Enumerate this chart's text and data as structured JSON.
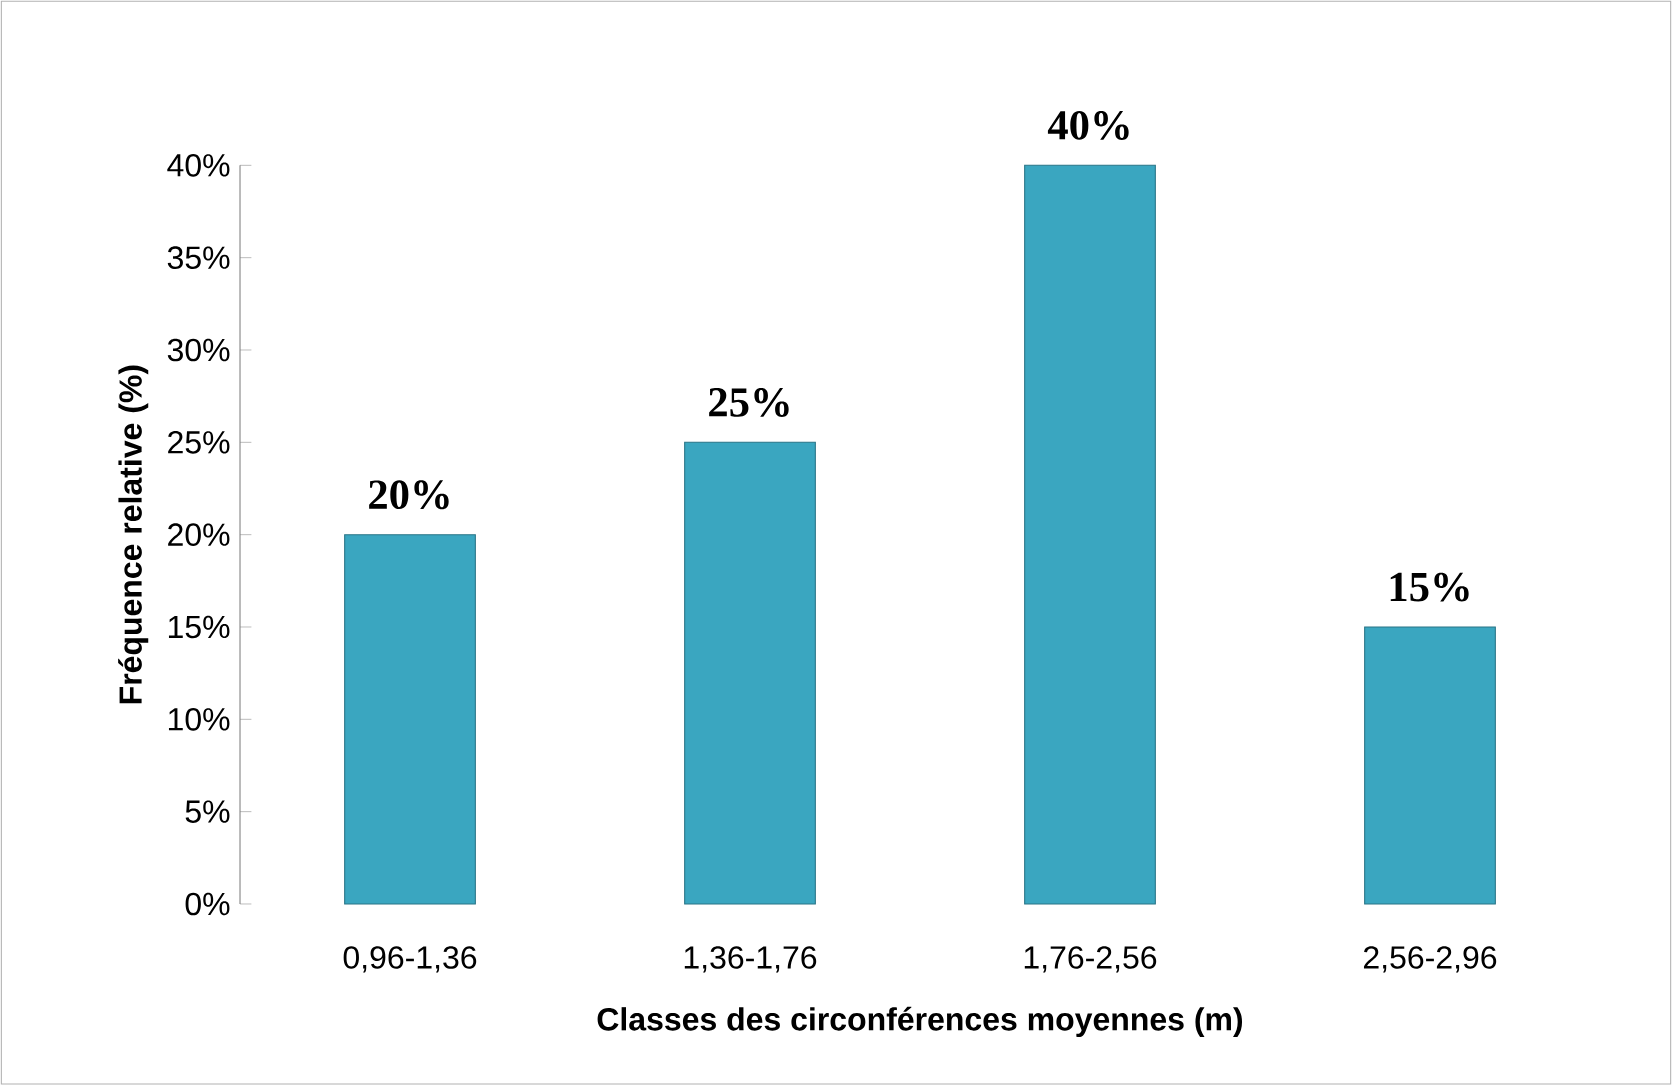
{
  "chart_data": {
    "type": "bar",
    "xlabel": "Classes des circonférences moyennes (m)",
    "ylabel": "Fréquence relative (%)",
    "categories": [
      "0,96-1,36",
      "1,36-1,76",
      "1,76-2,56",
      "2,56-2,96"
    ],
    "values": [
      20,
      25,
      40,
      15
    ],
    "color": "#3aa6c0",
    "value_labels": [
      "20%",
      "25%",
      "40%",
      "15%"
    ],
    "ylim": [
      0,
      40
    ],
    "yticks": [
      {
        "value": 0,
        "label": "0%"
      },
      {
        "value": 5,
        "label": "5%"
      },
      {
        "value": 10,
        "label": "10%"
      },
      {
        "value": 15,
        "label": "15%"
      },
      {
        "value": 20,
        "label": "20%"
      },
      {
        "value": 25,
        "label": "25%"
      },
      {
        "value": 30,
        "label": "30%"
      },
      {
        "value": 35,
        "label": "35%"
      },
      {
        "value": 40,
        "label": "40%"
      }
    ]
  }
}
